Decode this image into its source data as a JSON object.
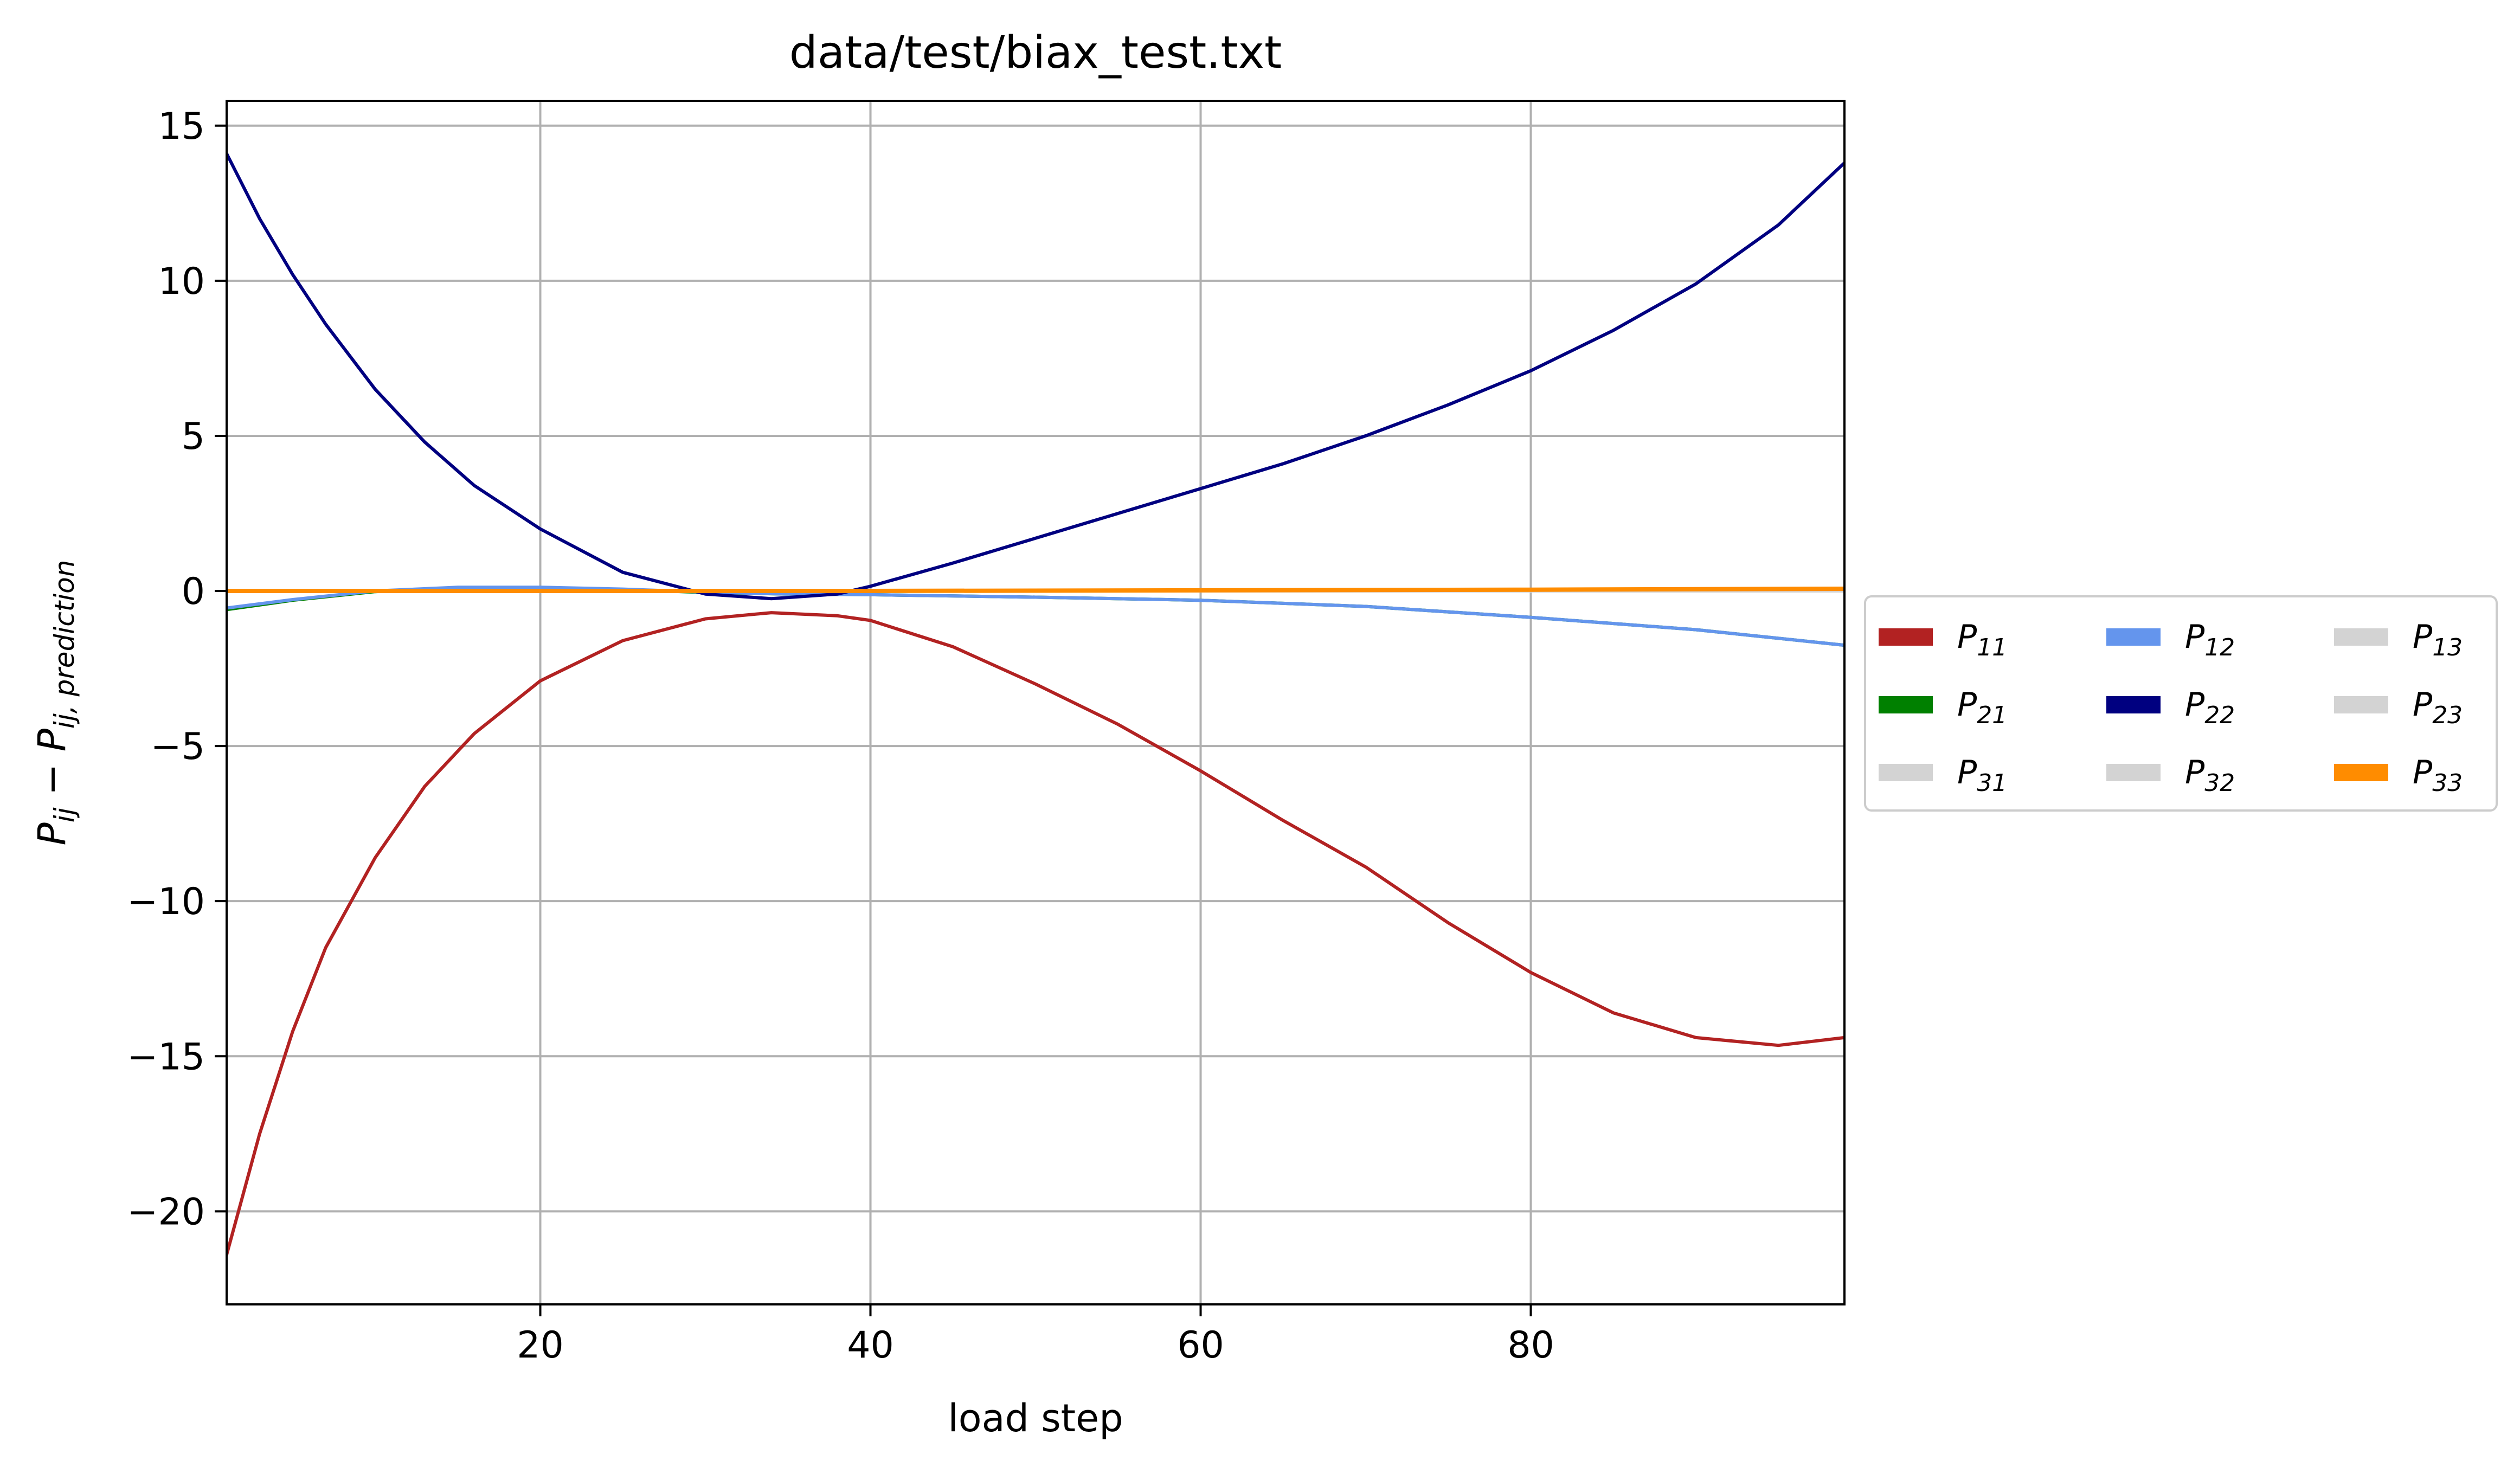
{
  "chart_data": {
    "type": "line",
    "title": "data/test/biax_test.txt",
    "xlabel": "load step",
    "ylabel": {
      "main": "P",
      "sub": "ij",
      "minus": " − ",
      "main2": "P",
      "sub2": "ij, prediction"
    },
    "xlim": [
      1,
      99
    ],
    "ylim": [
      -23,
      15.8
    ],
    "xticks": [
      20,
      40,
      60,
      80
    ],
    "yticks": [
      15,
      10,
      5,
      0,
      -5,
      -10,
      -15,
      -20
    ],
    "ytick_labels": [
      "15",
      "10",
      "5",
      "0",
      "−5",
      "−10",
      "−15",
      "−20"
    ],
    "grid": true,
    "legend_position": "outside-right",
    "legend_columns": 3,
    "series": [
      {
        "name": "P11",
        "label_main": "P",
        "label_sub": "11",
        "color": "#b22222",
        "x": [
          1,
          3,
          5,
          7,
          10,
          13,
          16,
          20,
          25,
          30,
          34,
          38,
          40,
          45,
          50,
          55,
          60,
          65,
          70,
          75,
          80,
          85,
          90,
          95,
          99
        ],
        "y": [
          -21.4,
          -17.5,
          -14.2,
          -11.5,
          -8.6,
          -6.3,
          -4.6,
          -2.9,
          -1.6,
          -0.9,
          -0.7,
          -0.8,
          -0.95,
          -1.8,
          -3.0,
          -4.3,
          -5.8,
          -7.4,
          -8.9,
          -10.7,
          -12.3,
          -13.6,
          -14.4,
          -14.65,
          -14.4
        ]
      },
      {
        "name": "P21",
        "label_main": "P",
        "label_sub": "21",
        "color": "#008000",
        "x": [
          1,
          5,
          10,
          15,
          20,
          25,
          30,
          35,
          40,
          50,
          60,
          70,
          80,
          90,
          99
        ],
        "y": [
          -0.6,
          -0.3,
          -0.02,
          0.1,
          0.1,
          0.05,
          -0.05,
          -0.1,
          -0.12,
          -0.2,
          -0.3,
          -0.5,
          -0.85,
          -1.25,
          -1.75
        ]
      },
      {
        "name": "P31",
        "label_main": "P",
        "label_sub": "31",
        "color": "#d3d3d3",
        "x": [
          1,
          99
        ],
        "y": [
          0,
          0
        ]
      },
      {
        "name": "P12",
        "label_main": "P",
        "label_sub": "12",
        "color": "#6495ed",
        "x": [
          1,
          5,
          10,
          15,
          20,
          25,
          30,
          35,
          40,
          50,
          60,
          70,
          80,
          90,
          99
        ],
        "y": [
          -0.55,
          -0.28,
          0.0,
          0.12,
          0.12,
          0.06,
          -0.04,
          -0.1,
          -0.12,
          -0.2,
          -0.3,
          -0.5,
          -0.85,
          -1.25,
          -1.75
        ]
      },
      {
        "name": "P22",
        "label_main": "P",
        "label_sub": "22",
        "color": "#000080",
        "x": [
          1,
          3,
          5,
          7,
          10,
          13,
          16,
          20,
          25,
          30,
          34,
          38,
          40,
          45,
          50,
          55,
          60,
          65,
          70,
          75,
          80,
          85,
          90,
          95,
          99
        ],
        "y": [
          14.1,
          12.0,
          10.2,
          8.6,
          6.5,
          4.8,
          3.4,
          2.0,
          0.6,
          -0.1,
          -0.25,
          -0.1,
          0.15,
          0.9,
          1.7,
          2.5,
          3.3,
          4.1,
          5.0,
          6.0,
          7.1,
          8.4,
          9.9,
          11.8,
          13.8
        ]
      },
      {
        "name": "P32",
        "label_main": "P",
        "label_sub": "32",
        "color": "#d3d3d3",
        "x": [
          1,
          99
        ],
        "y": [
          0,
          0
        ]
      },
      {
        "name": "P13",
        "label_main": "P",
        "label_sub": "13",
        "color": "#d3d3d3",
        "x": [
          1,
          99
        ],
        "y": [
          0,
          0
        ]
      },
      {
        "name": "P23",
        "label_main": "P",
        "label_sub": "23",
        "color": "#d3d3d3",
        "x": [
          1,
          99
        ],
        "y": [
          0,
          0
        ]
      },
      {
        "name": "P33",
        "label_main": "P",
        "label_sub": "33",
        "color": "#ff8c00",
        "x": [
          1,
          20,
          40,
          60,
          80,
          99
        ],
        "y": [
          0.0,
          0.0,
          0.0,
          0.02,
          0.04,
          0.07
        ]
      }
    ]
  }
}
